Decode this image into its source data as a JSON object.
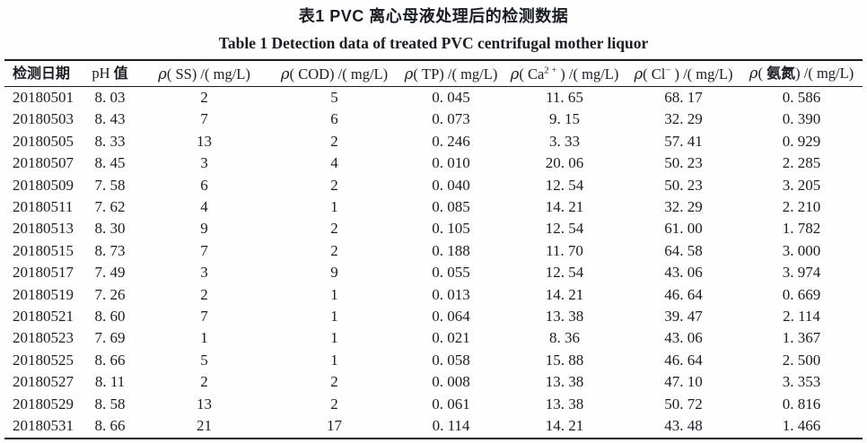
{
  "titles": {
    "cn": "表1  PVC 离心母液处理后的检测数据",
    "en": "Table 1  Detection data of treated PVC centrifugal mother liquor"
  },
  "table": {
    "headers": [
      {
        "name": "date",
        "parts": [
          {
            "text": "检测日期",
            "bold": true
          }
        ]
      },
      {
        "name": "ph",
        "parts": [
          {
            "text": "pH "
          },
          {
            "text": "值",
            "bold": true
          }
        ]
      },
      {
        "name": "ss",
        "parts": [
          {
            "text": "ρ",
            "italic": true
          },
          {
            "text": "( SS) /( mg/L)"
          }
        ]
      },
      {
        "name": "cod",
        "parts": [
          {
            "text": "ρ",
            "italic": true
          },
          {
            "text": "( COD) /( mg/L)"
          }
        ]
      },
      {
        "name": "tp",
        "parts": [
          {
            "text": "ρ",
            "italic": true
          },
          {
            "text": "( TP) /( mg/L)"
          }
        ]
      },
      {
        "name": "ca",
        "parts": [
          {
            "text": "ρ",
            "italic": true
          },
          {
            "text": "( Ca"
          },
          {
            "text": "2 +",
            "sup": true
          },
          {
            "text": " ) /( mg/L)"
          }
        ]
      },
      {
        "name": "cl",
        "parts": [
          {
            "text": "ρ",
            "italic": true
          },
          {
            "text": "( Cl"
          },
          {
            "text": "−",
            "sup": true
          },
          {
            "text": " ) /( mg/L)"
          }
        ]
      },
      {
        "name": "nh3n",
        "parts": [
          {
            "text": "ρ",
            "italic": true
          },
          {
            "text": "( "
          },
          {
            "text": "氨氮",
            "bold": true
          },
          {
            "text": ") /( mg/L)"
          }
        ]
      }
    ],
    "rows": [
      [
        "20180501",
        "8.03",
        "2",
        "5",
        "0.045",
        "11.65",
        "68.17",
        "0.586"
      ],
      [
        "20180503",
        "8.43",
        "7",
        "6",
        "0.073",
        "9.15",
        "32.29",
        "0.390"
      ],
      [
        "20180505",
        "8.33",
        "13",
        "2",
        "0.246",
        "3.33",
        "57.41",
        "0.929"
      ],
      [
        "20180507",
        "8.45",
        "3",
        "4",
        "0.010",
        "20.06",
        "50.23",
        "2.285"
      ],
      [
        "20180509",
        "7.58",
        "6",
        "2",
        "0.040",
        "12.54",
        "50.23",
        "3.205"
      ],
      [
        "20180511",
        "7.62",
        "4",
        "1",
        "0.085",
        "14.21",
        "32.29",
        "2.210"
      ],
      [
        "20180513",
        "8.30",
        "9",
        "2",
        "0.105",
        "12.54",
        "61.00",
        "1.782"
      ],
      [
        "20180515",
        "8.73",
        "7",
        "2",
        "0.188",
        "11.70",
        "64.58",
        "3.000"
      ],
      [
        "20180517",
        "7.49",
        "3",
        "9",
        "0.055",
        "12.54",
        "43.06",
        "3.974"
      ],
      [
        "20180519",
        "7.26",
        "2",
        "1",
        "0.013",
        "14.21",
        "46.64",
        "0.669"
      ],
      [
        "20180521",
        "8.60",
        "7",
        "1",
        "0.064",
        "13.38",
        "39.47",
        "2.114"
      ],
      [
        "20180523",
        "7.69",
        "1",
        "1",
        "0.021",
        "8.36",
        "43.06",
        "1.367"
      ],
      [
        "20180525",
        "8.66",
        "5",
        "1",
        "0.058",
        "15.88",
        "46.64",
        "2.500"
      ],
      [
        "20180527",
        "8.11",
        "2",
        "2",
        "0.008",
        "13.38",
        "47.10",
        "3.353"
      ],
      [
        "20180529",
        "8.58",
        "13",
        "2",
        "0.061",
        "13.38",
        "50.72",
        "0.816"
      ],
      [
        "20180531",
        "8.66",
        "21",
        "17",
        "0.114",
        "14.21",
        "43.48",
        "1.466"
      ]
    ]
  },
  "chart_data": {
    "type": "table",
    "title": "表1 PVC 离心母液处理后的检测数据 / Table 1 Detection data of treated PVC centrifugal mother liquor",
    "columns": [
      "检测日期",
      "pH 值",
      "ρ(SS)/(mg/L)",
      "ρ(COD)/(mg/L)",
      "ρ(TP)/(mg/L)",
      "ρ(Ca2+)/(mg/L)",
      "ρ(Cl−)/(mg/L)",
      "ρ(氨氮)/(mg/L)"
    ],
    "dates": [
      "20180501",
      "20180503",
      "20180505",
      "20180507",
      "20180509",
      "20180511",
      "20180513",
      "20180515",
      "20180517",
      "20180519",
      "20180521",
      "20180523",
      "20180525",
      "20180527",
      "20180529",
      "20180531"
    ],
    "series": [
      {
        "name": "pH",
        "values": [
          8.03,
          8.43,
          8.33,
          8.45,
          7.58,
          7.62,
          8.3,
          8.73,
          7.49,
          7.26,
          8.6,
          7.69,
          8.66,
          8.11,
          8.58,
          8.66
        ]
      },
      {
        "name": "SS",
        "values": [
          2,
          7,
          13,
          3,
          6,
          4,
          9,
          7,
          3,
          2,
          7,
          1,
          5,
          2,
          13,
          21
        ]
      },
      {
        "name": "COD",
        "values": [
          5,
          6,
          2,
          4,
          2,
          1,
          2,
          2,
          9,
          1,
          1,
          1,
          1,
          2,
          2,
          17
        ]
      },
      {
        "name": "TP",
        "values": [
          0.045,
          0.073,
          0.246,
          0.01,
          0.04,
          0.085,
          0.105,
          0.188,
          0.055,
          0.013,
          0.064,
          0.021,
          0.058,
          0.008,
          0.061,
          0.114
        ]
      },
      {
        "name": "Ca2+",
        "values": [
          11.65,
          9.15,
          3.33,
          20.06,
          12.54,
          14.21,
          12.54,
          11.7,
          12.54,
          14.21,
          13.38,
          8.36,
          15.88,
          13.38,
          13.38,
          14.21
        ]
      },
      {
        "name": "Cl-",
        "values": [
          68.17,
          32.29,
          57.41,
          50.23,
          50.23,
          32.29,
          61.0,
          64.58,
          43.06,
          46.64,
          39.47,
          43.06,
          46.64,
          47.1,
          50.72,
          43.48
        ]
      },
      {
        "name": "NH3-N",
        "values": [
          0.586,
          0.39,
          0.929,
          2.285,
          3.205,
          2.21,
          1.782,
          3.0,
          3.974,
          0.669,
          2.114,
          1.367,
          2.5,
          3.353,
          0.816,
          1.466
        ]
      }
    ],
    "colors": {
      "ink": "#1b1d25",
      "rule": "#1a1b22",
      "background": "#fefefe"
    }
  }
}
